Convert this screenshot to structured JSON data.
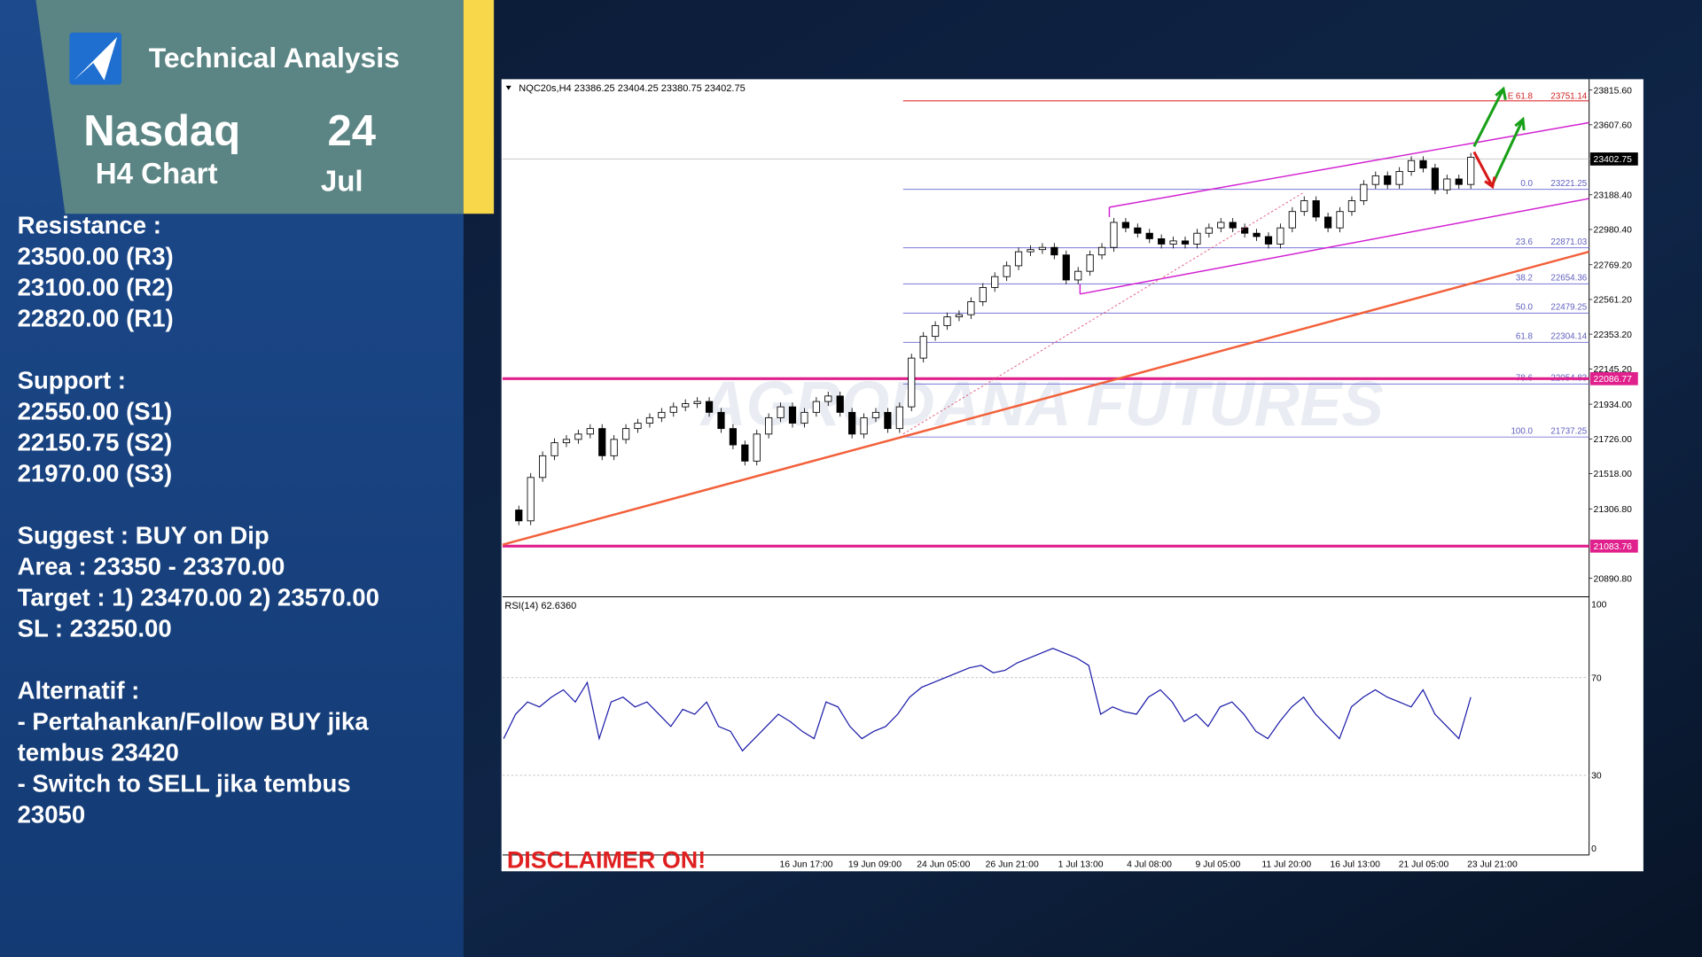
{
  "header": {
    "title": "Technical Analysis",
    "instrument": "Nasdaq",
    "timeframe": "H4 Chart",
    "day": "24",
    "month": "Jul"
  },
  "sections": [
    [
      "Resistance :",
      "23500.00 (R3)",
      "23100.00 (R2)",
      "22820.00 (R1)"
    ],
    [
      "Support :",
      "22550.00 (S1)",
      "22150.75 (S2)",
      "21970.00 (S3)"
    ],
    [
      "Suggest :  BUY on Dip",
      "Area : 23350 - 23370.00",
      "Target : 1) 23470.00  2) 23570.00",
      "SL : 23250.00"
    ],
    [
      "Alternatif :",
      "- Pertahankan/Follow BUY jika",
      "tembus 23420",
      "- Switch to SELL jika tembus",
      "23050"
    ]
  ],
  "chart_data": [
    {
      "type": "candlestick",
      "header": "NQC20s,H4  23386.25 23404.25 23380.75 23402.75",
      "watermark": "AGRODANA FUTURES",
      "disclaimer": "DISCLAIMER ON!",
      "closes": [
        21300,
        21235,
        21495,
        21625,
        21703,
        21723,
        21755,
        21788,
        21625,
        21723,
        21788,
        21820,
        21853,
        21885,
        21918,
        21937,
        21950,
        21885,
        21788,
        21690,
        21593,
        21755,
        21853,
        21918,
        21820,
        21885,
        21950,
        21983,
        21885,
        21755,
        21853,
        21885,
        21788,
        21918,
        22210,
        22340,
        22405,
        22457,
        22470,
        22548,
        22633,
        22698,
        22763,
        22847,
        22860,
        22873,
        22828,
        22678,
        22730,
        22828,
        22873,
        23023,
        22990,
        22958,
        22925,
        22893,
        22912,
        22893,
        22958,
        22990,
        23023,
        22990,
        22958,
        22938,
        22893,
        22990,
        23088,
        23153,
        23055,
        22990,
        23088,
        23153,
        23250,
        23302,
        23250,
        23328,
        23393,
        23348,
        23218,
        23283,
        23250,
        23413
      ],
      "ylim": [
        20780.3,
        23880.6
      ],
      "yticks": [
        {
          "value": 23815.6,
          "label": "23815.60"
        },
        {
          "value": 23607.6,
          "label": "23607.60"
        },
        {
          "value": 23188.4,
          "label": "23188.40"
        },
        {
          "value": 22980.4,
          "label": "22980.40"
        },
        {
          "value": 22769.2,
          "label": "22769.20"
        },
        {
          "value": 22561.2,
          "label": "22561.20"
        },
        {
          "value": 22353.2,
          "label": "22353.20"
        },
        {
          "value": 22145.2,
          "label": "22145.20"
        },
        {
          "value": 21934,
          "label": "21934.00"
        },
        {
          "value": 21726,
          "label": "21726.00"
        },
        {
          "value": 21518,
          "label": "21518.00"
        },
        {
          "value": 21306.8,
          "label": "21306.80"
        },
        {
          "value": 20890.8,
          "label": "20890.80"
        }
      ],
      "fibonacci": [
        {
          "level": "0.0",
          "price": 23221.25
        },
        {
          "level": "23.6",
          "price": 22871.03
        },
        {
          "level": "38.2",
          "price": 22654.36
        },
        {
          "level": "50.0",
          "price": 22479.25
        },
        {
          "level": "61.8",
          "price": 22304.14
        },
        {
          "level": "78.6",
          "price": 22054.83
        },
        {
          "level": "100.0",
          "price": 21737.25
        }
      ],
      "expansion": {
        "level": "E 61.8",
        "price": 23751.14
      },
      "current_price": 23402.75,
      "levels": [
        22086.77,
        21083.76
      ],
      "time_labels": [
        null,
        null,
        null,
        null,
        "16 Jun 17:00",
        "19 Jun 09:00",
        "24 Jun 05:00",
        "26 Jun 21:00",
        "1 Jul 13:00",
        "4 Jul 08:00",
        "9 Jul 05:00",
        "11 Jul 20:00",
        "16 Jul 13:00",
        "21 Jul 05:00",
        "23 Jul 21:00"
      ]
    },
    {
      "type": "line",
      "title": "RSI(14) 62.6360",
      "color": "#1a1aa8",
      "ylim": [
        0,
        100
      ],
      "yticks": [
        0,
        30,
        70,
        100
      ],
      "values": [
        45,
        55,
        60,
        58,
        62,
        65,
        60,
        68,
        45,
        60,
        62,
        58,
        60,
        55,
        50,
        57,
        55,
        60,
        50,
        48,
        40,
        45,
        50,
        55,
        52,
        48,
        45,
        60,
        58,
        50,
        45,
        48,
        50,
        55,
        62,
        66,
        68,
        70,
        72,
        74,
        75,
        72,
        73,
        76,
        78,
        80,
        82,
        80,
        78,
        75,
        55,
        58,
        56,
        55,
        62,
        65,
        60,
        52,
        55,
        50,
        58,
        60,
        55,
        48,
        45,
        52,
        58,
        62,
        55,
        50,
        45,
        58,
        62,
        65,
        62,
        60,
        58,
        65,
        55,
        50,
        45,
        62
      ]
    }
  ]
}
